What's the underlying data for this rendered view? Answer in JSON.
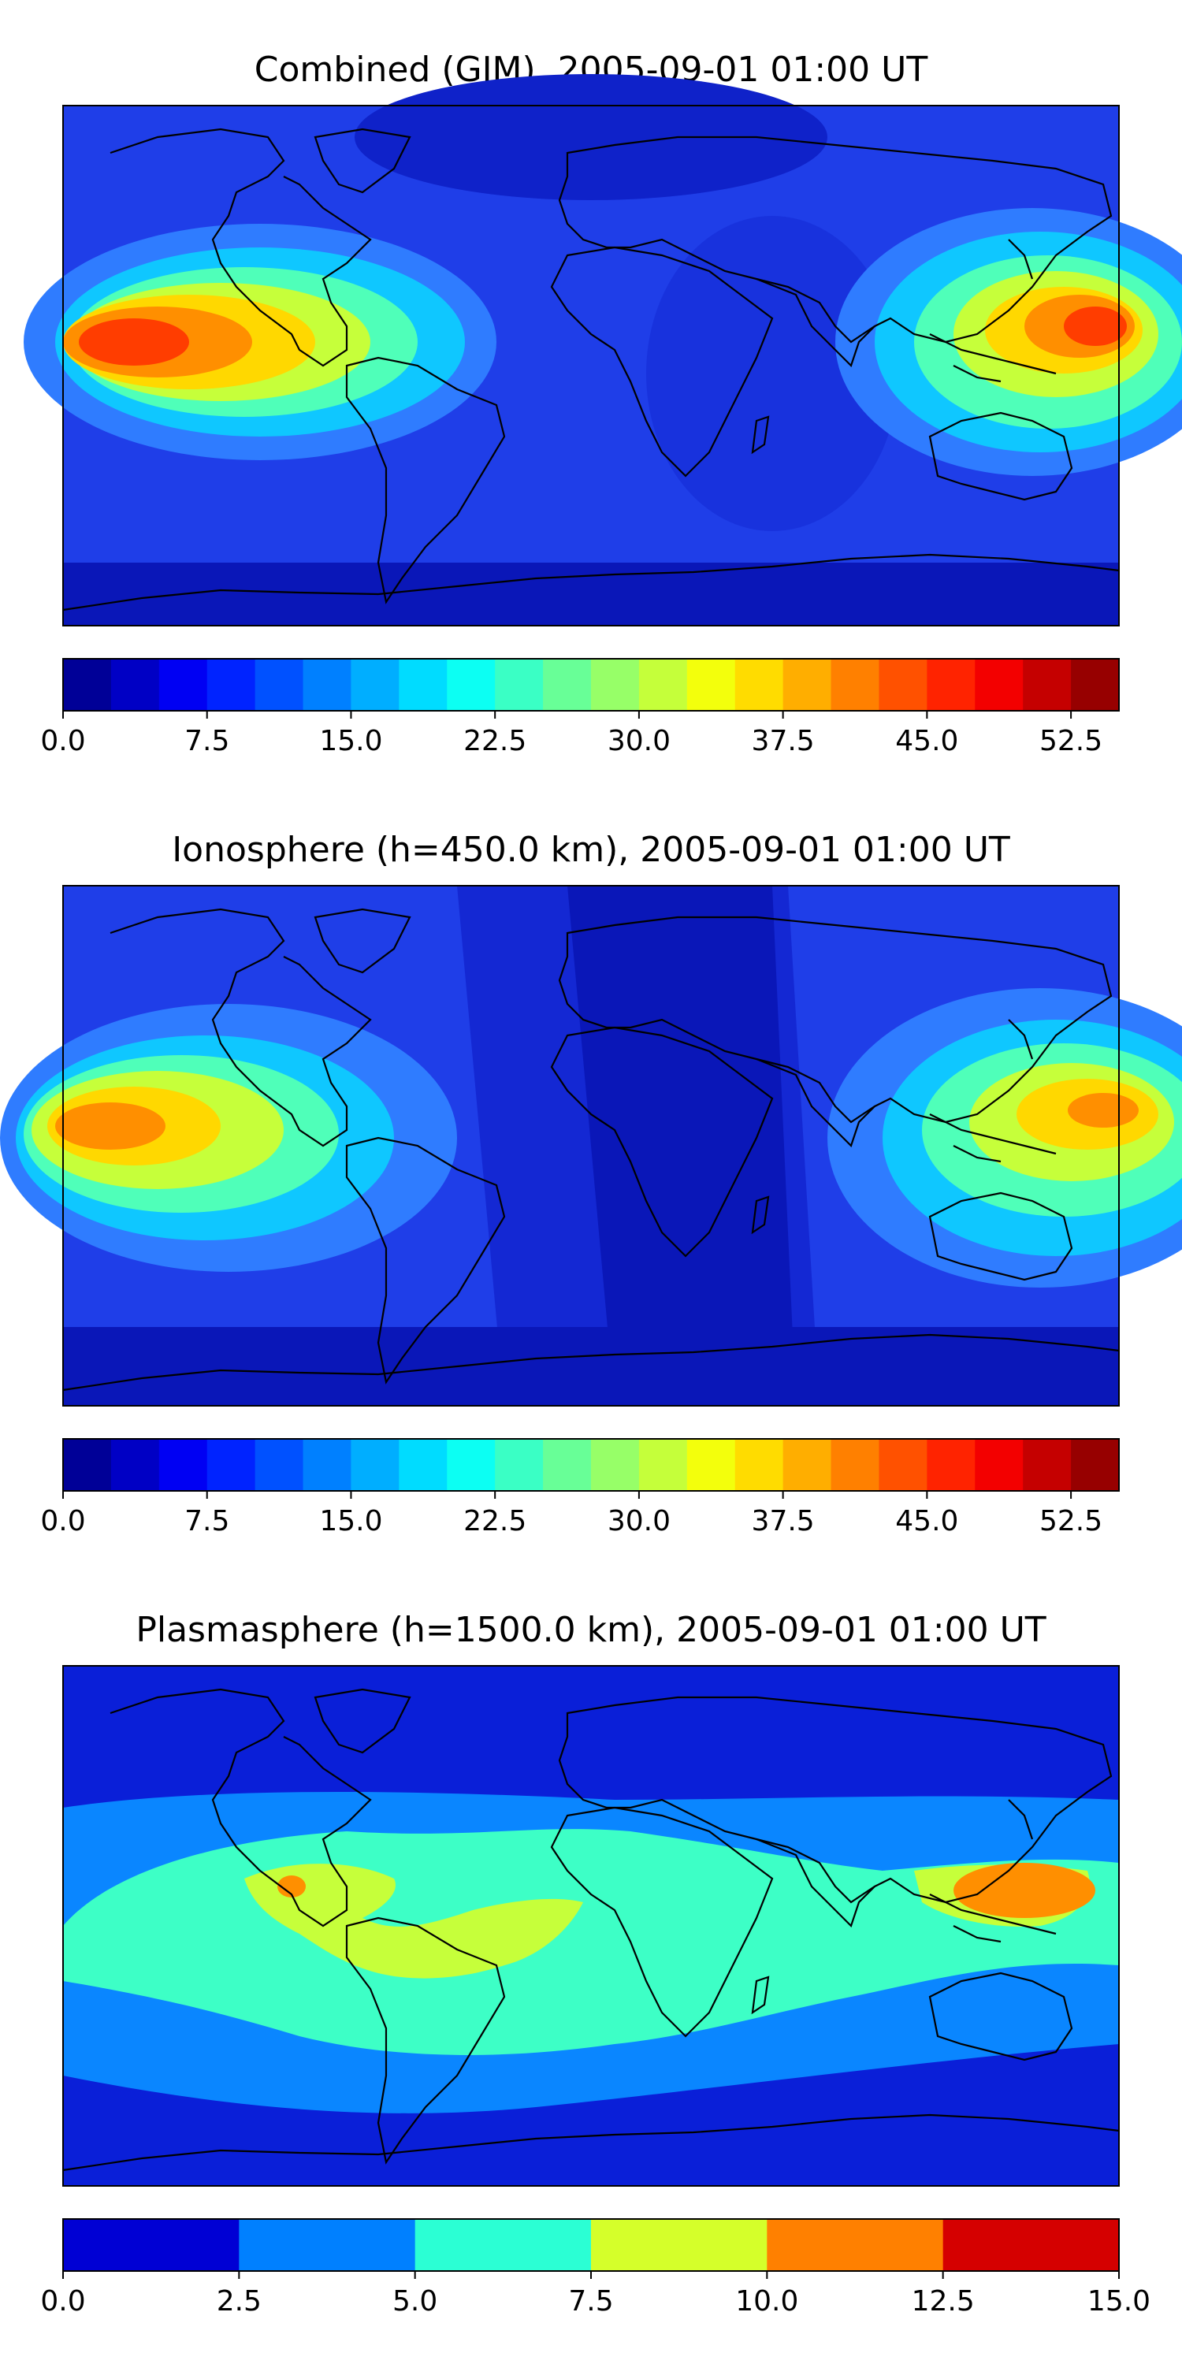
{
  "figure": {
    "panels": [
      {
        "title": "Combined (GIM), 2005-09-01 01:00 UT",
        "colorbar": {
          "min": 0.0,
          "max": 55.0,
          "step": 2.5,
          "tick_labels": [
            "0.0",
            "7.5",
            "15.0",
            "22.5",
            "30.0",
            "37.5",
            "45.0",
            "52.5"
          ],
          "tick_values": [
            0.0,
            7.5,
            15.0,
            22.5,
            30.0,
            37.5,
            45.0,
            52.5
          ]
        }
      },
      {
        "title": "Ionosphere  (h=450.0 km), 2005-09-01 01:00 UT",
        "colorbar": {
          "min": 0.0,
          "max": 55.0,
          "step": 2.5,
          "tick_labels": [
            "0.0",
            "7.5",
            "15.0",
            "22.5",
            "30.0",
            "37.5",
            "45.0",
            "52.5"
          ],
          "tick_values": [
            0.0,
            7.5,
            15.0,
            22.5,
            30.0,
            37.5,
            45.0,
            52.5
          ]
        }
      },
      {
        "title": "Plasmasphere (h=1500.0 km), 2005-09-01 01:00 UT",
        "colorbar": {
          "min": 0.0,
          "max": 15.0,
          "step": 2.5,
          "tick_labels": [
            "0.0",
            "2.5",
            "5.0",
            "7.5",
            "10.0",
            "12.5",
            "15.0"
          ],
          "tick_values": [
            0.0,
            2.5,
            5.0,
            7.5,
            10.0,
            12.5,
            15.0
          ]
        }
      }
    ],
    "colormap": "jet",
    "colors": {
      "coastline": "#000000",
      "frame": "#000000",
      "background": "#ffffff"
    }
  }
}
